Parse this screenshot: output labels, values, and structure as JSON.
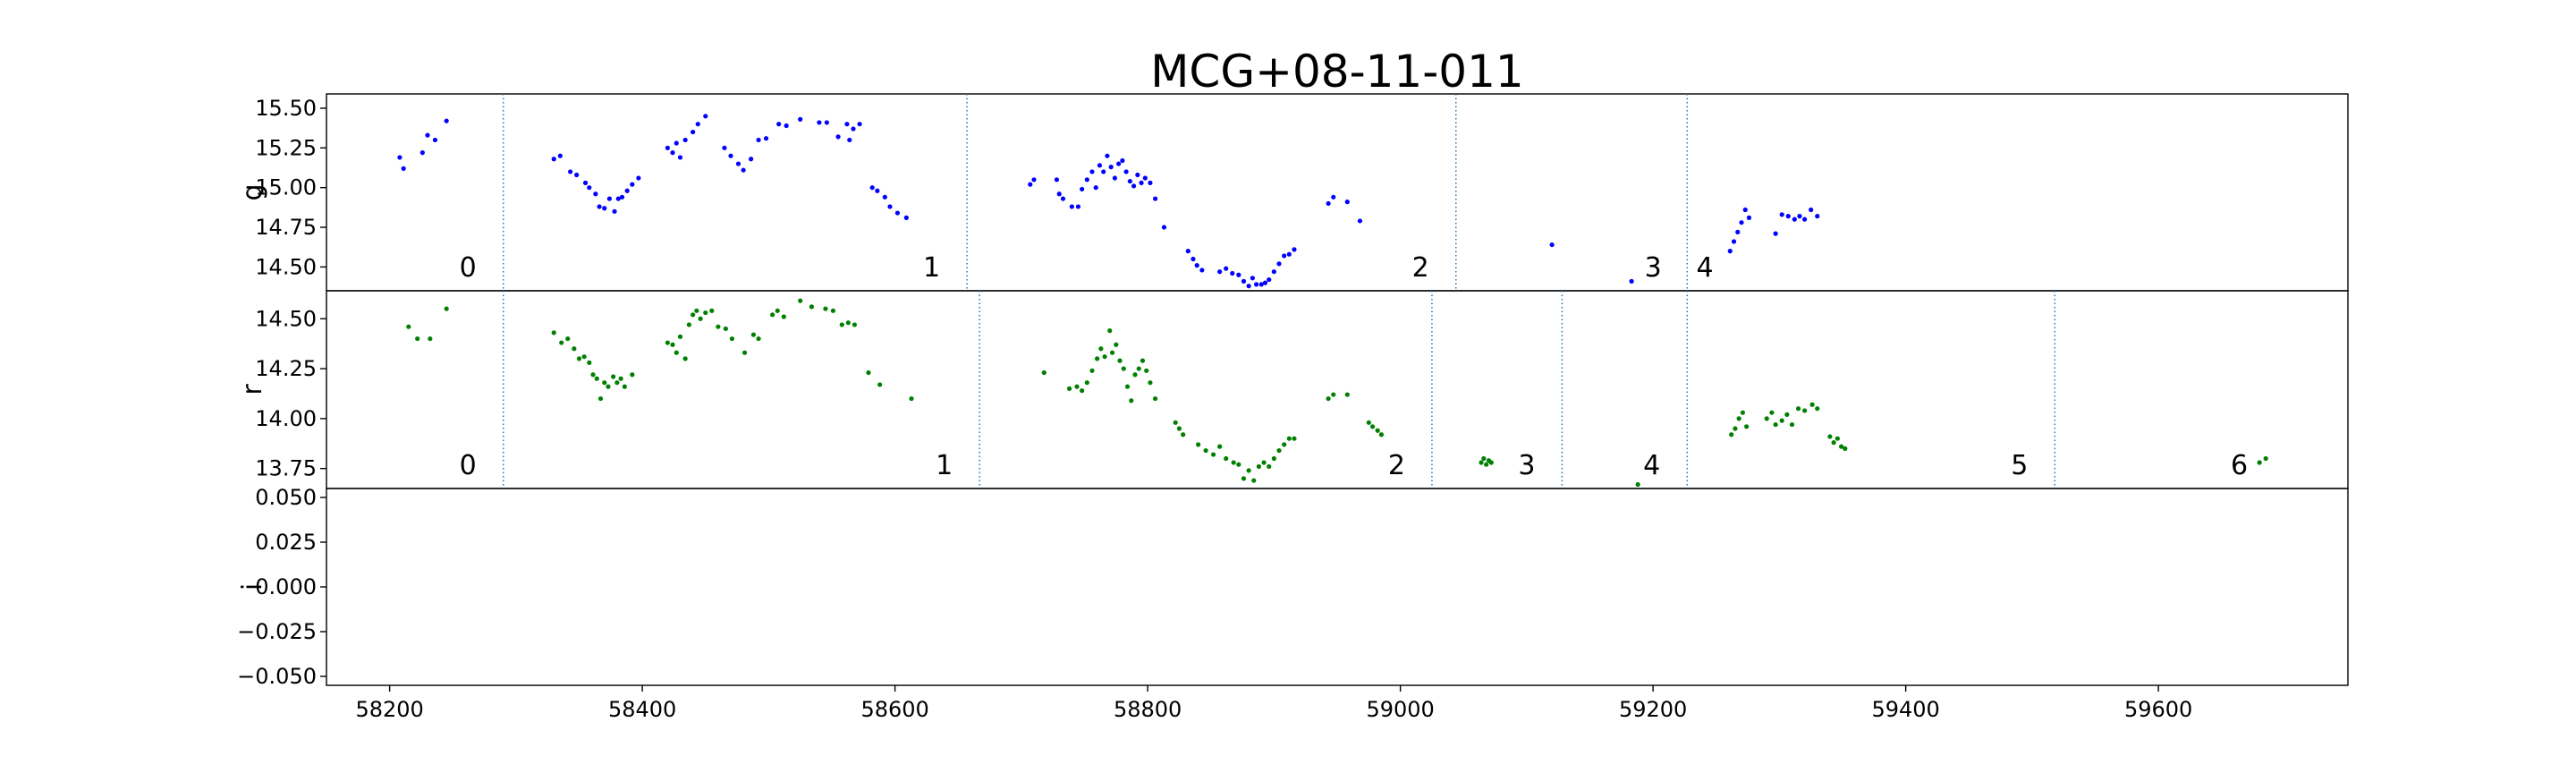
{
  "chart_data": {
    "type": "scatter",
    "title": "MCG+08-11-011",
    "x": {
      "label": "",
      "lim": [
        58150,
        59750
      ],
      "ticks": [
        58200,
        58400,
        58600,
        58800,
        59000,
        59200,
        59400,
        59600
      ]
    },
    "panels": [
      {
        "name": "g",
        "ylabel": "g",
        "color": "#0000ff",
        "ylim": [
          14.35,
          15.59
        ],
        "ticks": [
          14.5,
          14.75,
          15.0,
          15.25,
          15.5
        ],
        "tick_labels": [
          "14.50",
          "14.75",
          "15.00",
          "15.25",
          "15.50"
        ],
        "dividers": [
          58290,
          58657,
          59044,
          59227
        ],
        "segment_labels": [
          {
            "text": "0",
            "x": 58262
          },
          {
            "text": "1",
            "x": 58629
          },
          {
            "text": "2",
            "x": 59016
          },
          {
            "text": "3",
            "x": 59200
          },
          {
            "text": "4",
            "x": 59241
          }
        ],
        "points": [
          [
            58208,
            15.19
          ],
          [
            58211,
            15.12
          ],
          [
            58226,
            15.22
          ],
          [
            58230,
            15.33
          ],
          [
            58236,
            15.3
          ],
          [
            58245,
            15.42
          ],
          [
            58330,
            15.18
          ],
          [
            58335,
            15.2
          ],
          [
            58343,
            15.1
          ],
          [
            58348,
            15.08
          ],
          [
            58355,
            15.03
          ],
          [
            58358,
            15.0
          ],
          [
            58363,
            14.96
          ],
          [
            58366,
            14.88
          ],
          [
            58370,
            14.87
          ],
          [
            58374,
            14.93
          ],
          [
            58378,
            14.85
          ],
          [
            58381,
            14.93
          ],
          [
            58384,
            14.94
          ],
          [
            58388,
            14.98
          ],
          [
            58392,
            15.02
          ],
          [
            58397,
            15.06
          ],
          [
            58420,
            15.25
          ],
          [
            58424,
            15.22
          ],
          [
            58427,
            15.28
          ],
          [
            58430,
            15.19
          ],
          [
            58434,
            15.3
          ],
          [
            58440,
            15.35
          ],
          [
            58444,
            15.4
          ],
          [
            58450,
            15.45
          ],
          [
            58465,
            15.25
          ],
          [
            58470,
            15.2
          ],
          [
            58476,
            15.15
          ],
          [
            58480,
            15.11
          ],
          [
            58486,
            15.18
          ],
          [
            58492,
            15.3
          ],
          [
            58498,
            15.31
          ],
          [
            58508,
            15.4
          ],
          [
            58514,
            15.39
          ],
          [
            58525,
            15.43
          ],
          [
            58540,
            15.41
          ],
          [
            58546,
            15.41
          ],
          [
            58555,
            15.32
          ],
          [
            58562,
            15.4
          ],
          [
            58564,
            15.3
          ],
          [
            58567,
            15.37
          ],
          [
            58572,
            15.4
          ],
          [
            58582,
            15.0
          ],
          [
            58586,
            14.98
          ],
          [
            58592,
            14.94
          ],
          [
            58596,
            14.88
          ],
          [
            58602,
            14.84
          ],
          [
            58609,
            14.81
          ],
          [
            58707,
            15.02
          ],
          [
            58710,
            15.05
          ],
          [
            58728,
            15.05
          ],
          [
            58730,
            14.96
          ],
          [
            58733,
            14.93
          ],
          [
            58740,
            14.88
          ],
          [
            58745,
            14.88
          ],
          [
            58748,
            14.99
          ],
          [
            58752,
            15.05
          ],
          [
            58756,
            15.1
          ],
          [
            58759,
            15.0
          ],
          [
            58762,
            15.14
          ],
          [
            58765,
            15.1
          ],
          [
            58768,
            15.2
          ],
          [
            58771,
            15.13
          ],
          [
            58774,
            15.06
          ],
          [
            58777,
            15.15
          ],
          [
            58780,
            15.17
          ],
          [
            58783,
            15.1
          ],
          [
            58786,
            15.04
          ],
          [
            58789,
            15.01
          ],
          [
            58792,
            15.08
          ],
          [
            58795,
            15.03
          ],
          [
            58798,
            15.06
          ],
          [
            58802,
            15.03
          ],
          [
            58806,
            14.93
          ],
          [
            58813,
            14.75
          ],
          [
            58832,
            14.6
          ],
          [
            58836,
            14.55
          ],
          [
            58839,
            14.51
          ],
          [
            58843,
            14.48
          ],
          [
            58857,
            14.47
          ],
          [
            58862,
            14.49
          ],
          [
            58867,
            14.46
          ],
          [
            58872,
            14.45
          ],
          [
            58876,
            14.41
          ],
          [
            58880,
            14.38
          ],
          [
            58883,
            14.43
          ],
          [
            58886,
            14.39
          ],
          [
            58890,
            14.39
          ],
          [
            58893,
            14.4
          ],
          [
            58896,
            14.42
          ],
          [
            58900,
            14.47
          ],
          [
            58904,
            14.52
          ],
          [
            58908,
            14.57
          ],
          [
            58912,
            14.58
          ],
          [
            58916,
            14.61
          ],
          [
            58943,
            14.9
          ],
          [
            58947,
            14.94
          ],
          [
            58958,
            14.91
          ],
          [
            58968,
            14.79
          ],
          [
            59120,
            14.64
          ],
          [
            59183,
            14.41
          ],
          [
            59190,
            14.33
          ],
          [
            59261,
            14.6
          ],
          [
            59264,
            14.66
          ],
          [
            59267,
            14.72
          ],
          [
            59270,
            14.78
          ],
          [
            59273,
            14.86
          ],
          [
            59276,
            14.81
          ],
          [
            59297,
            14.71
          ],
          [
            59302,
            14.83
          ],
          [
            59307,
            14.82
          ],
          [
            59312,
            14.8
          ],
          [
            59316,
            14.82
          ],
          [
            59320,
            14.8
          ],
          [
            59325,
            14.86
          ],
          [
            59330,
            14.82
          ]
        ]
      },
      {
        "name": "r",
        "ylabel": "r",
        "color": "#008000",
        "ylim": [
          13.65,
          14.64
        ],
        "ticks": [
          13.75,
          14.0,
          14.25,
          14.5
        ],
        "tick_labels": [
          "13.75",
          "14.00",
          "14.25",
          "14.50"
        ],
        "dividers": [
          58290,
          58667,
          59025,
          59128,
          59227,
          59518
        ],
        "segment_labels": [
          {
            "text": "0",
            "x": 58262
          },
          {
            "text": "1",
            "x": 58639
          },
          {
            "text": "2",
            "x": 58997
          },
          {
            "text": "3",
            "x": 59100
          },
          {
            "text": "4",
            "x": 59199
          },
          {
            "text": "5",
            "x": 59490
          },
          {
            "text": "6",
            "x": 59664
          }
        ],
        "points": [
          [
            58215,
            14.46
          ],
          [
            58222,
            14.4
          ],
          [
            58232,
            14.4
          ],
          [
            58245,
            14.55
          ],
          [
            58330,
            14.43
          ],
          [
            58336,
            14.38
          ],
          [
            58341,
            14.4
          ],
          [
            58346,
            14.35
          ],
          [
            58350,
            14.3
          ],
          [
            58354,
            14.31
          ],
          [
            58358,
            14.28
          ],
          [
            58361,
            14.22
          ],
          [
            58364,
            14.2
          ],
          [
            58367,
            14.1
          ],
          [
            58370,
            14.18
          ],
          [
            58373,
            14.16
          ],
          [
            58377,
            14.21
          ],
          [
            58380,
            14.18
          ],
          [
            58383,
            14.2
          ],
          [
            58386,
            14.16
          ],
          [
            58392,
            14.22
          ],
          [
            58420,
            14.38
          ],
          [
            58424,
            14.37
          ],
          [
            58427,
            14.33
          ],
          [
            58430,
            14.41
          ],
          [
            58434,
            14.3
          ],
          [
            58437,
            14.47
          ],
          [
            58440,
            14.52
          ],
          [
            58443,
            14.54
          ],
          [
            58446,
            14.5
          ],
          [
            58450,
            14.53
          ],
          [
            58455,
            14.54
          ],
          [
            58460,
            14.46
          ],
          [
            58466,
            14.45
          ],
          [
            58471,
            14.4
          ],
          [
            58481,
            14.33
          ],
          [
            58488,
            14.42
          ],
          [
            58492,
            14.4
          ],
          [
            58503,
            14.52
          ],
          [
            58507,
            14.54
          ],
          [
            58512,
            14.51
          ],
          [
            58525,
            14.59
          ],
          [
            58534,
            14.56
          ],
          [
            58545,
            14.55
          ],
          [
            58551,
            14.54
          ],
          [
            58558,
            14.47
          ],
          [
            58563,
            14.48
          ],
          [
            58568,
            14.47
          ],
          [
            58579,
            14.23
          ],
          [
            58588,
            14.17
          ],
          [
            58613,
            14.1
          ],
          [
            58718,
            14.23
          ],
          [
            58738,
            14.15
          ],
          [
            58744,
            14.16
          ],
          [
            58748,
            14.14
          ],
          [
            58752,
            14.18
          ],
          [
            58756,
            14.24
          ],
          [
            58760,
            14.3
          ],
          [
            58763,
            14.35
          ],
          [
            58766,
            14.31
          ],
          [
            58770,
            14.44
          ],
          [
            58772,
            14.33
          ],
          [
            58775,
            14.37
          ],
          [
            58778,
            14.29
          ],
          [
            58781,
            14.25
          ],
          [
            58784,
            14.16
          ],
          [
            58787,
            14.09
          ],
          [
            58790,
            14.22
          ],
          [
            58793,
            14.25
          ],
          [
            58796,
            14.29
          ],
          [
            58799,
            14.24
          ],
          [
            58802,
            14.18
          ],
          [
            58806,
            14.1
          ],
          [
            58822,
            13.98
          ],
          [
            58825,
            13.95
          ],
          [
            58828,
            13.92
          ],
          [
            58840,
            13.87
          ],
          [
            58846,
            13.84
          ],
          [
            58852,
            13.82
          ],
          [
            58857,
            13.86
          ],
          [
            58862,
            13.8
          ],
          [
            58868,
            13.78
          ],
          [
            58872,
            13.77
          ],
          [
            58876,
            13.7
          ],
          [
            58880,
            13.74
          ],
          [
            58884,
            13.69
          ],
          [
            58888,
            13.76
          ],
          [
            58892,
            13.78
          ],
          [
            58896,
            13.76
          ],
          [
            58900,
            13.8
          ],
          [
            58904,
            13.84
          ],
          [
            58908,
            13.87
          ],
          [
            58912,
            13.9
          ],
          [
            58916,
            13.9
          ],
          [
            58943,
            14.1
          ],
          [
            58947,
            14.12
          ],
          [
            58958,
            14.12
          ],
          [
            58975,
            13.98
          ],
          [
            58978,
            13.96
          ],
          [
            58982,
            13.94
          ],
          [
            58985,
            13.92
          ],
          [
            59064,
            13.78
          ],
          [
            59066,
            13.8
          ],
          [
            59068,
            13.77
          ],
          [
            59070,
            13.79
          ],
          [
            59072,
            13.78
          ],
          [
            59188,
            13.67
          ],
          [
            59262,
            13.92
          ],
          [
            59265,
            13.95
          ],
          [
            59268,
            14.0
          ],
          [
            59271,
            14.03
          ],
          [
            59274,
            13.96
          ],
          [
            59290,
            14.0
          ],
          [
            59294,
            14.03
          ],
          [
            59297,
            13.97
          ],
          [
            59302,
            13.99
          ],
          [
            59306,
            14.02
          ],
          [
            59310,
            13.97
          ],
          [
            59315,
            14.05
          ],
          [
            59320,
            14.04
          ],
          [
            59326,
            14.07
          ],
          [
            59330,
            14.05
          ],
          [
            59340,
            13.91
          ],
          [
            59343,
            13.88
          ],
          [
            59346,
            13.9
          ],
          [
            59349,
            13.86
          ],
          [
            59352,
            13.85
          ],
          [
            59680,
            13.78
          ],
          [
            59685,
            13.8
          ]
        ]
      },
      {
        "name": "i",
        "ylabel": "i",
        "color": "#ff0000",
        "ylim": [
          -0.055,
          0.055
        ],
        "ticks": [
          -0.05,
          -0.025,
          0.0,
          0.025,
          0.05
        ],
        "tick_labels": [
          "−0.050",
          "−0.025",
          "0.000",
          "0.025",
          "0.050"
        ],
        "dividers": [],
        "segment_labels": [],
        "points": []
      }
    ]
  }
}
